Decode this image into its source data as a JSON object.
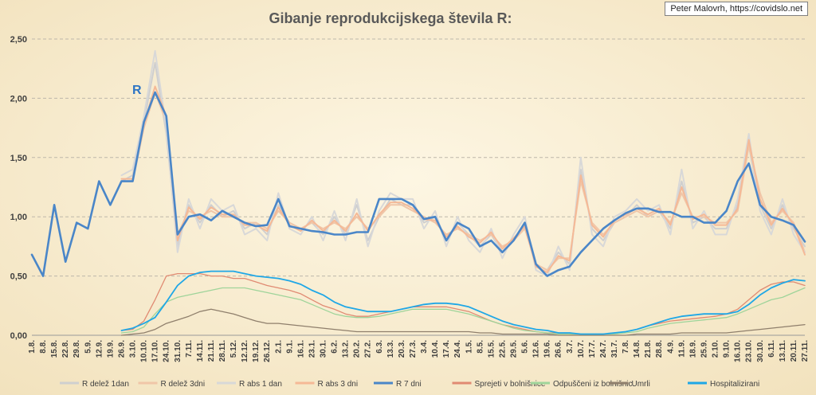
{
  "credit": "Peter Malovrh, https://covidslo.net",
  "chart_data": {
    "type": "line",
    "title": "Gibanje reprodukcijskega števila R:",
    "annotation": "R",
    "ylim": [
      0,
      2.5
    ],
    "yticks": [
      "0,00",
      "0,50",
      "1,00",
      "1,50",
      "2,00",
      "2,50"
    ],
    "grid": true,
    "legend_position": "bottom",
    "x": [
      "1.8.",
      "8.8.",
      "15.8.",
      "22.8.",
      "29.8.",
      "5.9.",
      "12.9.",
      "19.9.",
      "26.9.",
      "3.10.",
      "10.10.",
      "17.10.",
      "24.10.",
      "31.10.",
      "7.11.",
      "14.11.",
      "21.11.",
      "28.11.",
      "5.12.",
      "12.12.",
      "19.12.",
      "26.12.",
      "2.1.",
      "9.1.",
      "16.1.",
      "23.1.",
      "30.1.",
      "6.2.",
      "13.2.",
      "20.2.",
      "27.2.",
      "6.3.",
      "13.3.",
      "20.3.",
      "27.3.",
      "3.4.",
      "10.4.",
      "17.4.",
      "24.4.",
      "1.5.",
      "8.5.",
      "15.5.",
      "22.5.",
      "29.5.",
      "5.6.",
      "12.6.",
      "19.6.",
      "26.6.",
      "3.7.",
      "10.7.",
      "17.7.",
      "24.7.",
      "31.7.",
      "7.8.",
      "14.8.",
      "21.8.",
      "28.8.",
      "4.9.",
      "11.9.",
      "18.9.",
      "25.9.",
      "2.10.",
      "9.10.",
      "16.10.",
      "23.10.",
      "30.10.",
      "6.11.",
      "13.11.",
      "20.11.",
      "27.11."
    ],
    "series": [
      {
        "name": "R delež 1dan",
        "color": "#cfcfcf",
        "width": 2,
        "values": [
          null,
          null,
          null,
          null,
          null,
          null,
          null,
          null,
          1.3,
          1.35,
          1.8,
          2.3,
          1.7,
          0.75,
          1.1,
          0.95,
          1.1,
          1.0,
          1.05,
          0.9,
          0.95,
          0.85,
          1.1,
          0.95,
          0.9,
          0.95,
          0.85,
          1.0,
          0.85,
          1.1,
          0.8,
          1.0,
          1.15,
          1.1,
          1.1,
          0.95,
          1.0,
          0.8,
          0.95,
          0.85,
          0.75,
          0.85,
          0.7,
          0.8,
          0.95,
          0.6,
          0.55,
          0.7,
          0.6,
          1.4,
          0.9,
          0.8,
          0.95,
          1.0,
          1.1,
          1.0,
          1.05,
          0.9,
          1.3,
          0.95,
          1.0,
          0.9,
          0.9,
          1.1,
          1.6,
          1.1,
          0.9,
          1.1,
          0.9,
          0.75
        ]
      },
      {
        "name": "R delež 3dni",
        "color": "#f0c6a8",
        "width": 2,
        "values": [
          null,
          null,
          null,
          null,
          null,
          null,
          null,
          null,
          1.3,
          1.3,
          1.75,
          2.05,
          1.8,
          0.85,
          1.05,
          1.0,
          1.05,
          1.0,
          1.0,
          0.95,
          0.95,
          0.9,
          1.05,
          0.95,
          0.9,
          0.95,
          0.9,
          0.95,
          0.9,
          1.0,
          0.9,
          1.0,
          1.1,
          1.1,
          1.05,
          1.0,
          0.95,
          0.85,
          0.9,
          0.85,
          0.8,
          0.85,
          0.75,
          0.8,
          0.9,
          0.6,
          0.55,
          0.65,
          0.65,
          1.3,
          0.95,
          0.85,
          0.95,
          1.0,
          1.05,
          1.0,
          1.05,
          0.95,
          1.2,
          1.0,
          1.0,
          0.95,
          0.95,
          1.05,
          1.6,
          1.2,
          0.95,
          1.05,
          0.95,
          0.7
        ]
      },
      {
        "name": "R abs 1 dan",
        "color": "#d8d8d8",
        "width": 2,
        "values": [
          null,
          null,
          null,
          null,
          null,
          null,
          null,
          null,
          1.35,
          1.4,
          1.85,
          2.4,
          1.75,
          0.7,
          1.15,
          0.9,
          1.15,
          1.05,
          1.1,
          0.85,
          0.9,
          0.8,
          1.2,
          0.9,
          0.85,
          1.0,
          0.8,
          1.05,
          0.8,
          1.15,
          0.75,
          1.05,
          1.2,
          1.15,
          1.15,
          0.9,
          1.05,
          0.75,
          1.0,
          0.8,
          0.7,
          0.9,
          0.65,
          0.85,
          1.0,
          0.55,
          0.5,
          0.75,
          0.55,
          1.5,
          0.85,
          0.75,
          1.0,
          1.05,
          1.15,
          1.05,
          1.1,
          0.85,
          1.4,
          0.9,
          1.05,
          0.85,
          0.85,
          1.15,
          1.7,
          1.05,
          0.85,
          1.15,
          0.85,
          0.7
        ]
      },
      {
        "name": "R abs 3 dni",
        "color": "#f5b996",
        "width": 2,
        "values": [
          null,
          null,
          null,
          null,
          null,
          null,
          null,
          null,
          1.32,
          1.32,
          1.78,
          2.1,
          1.85,
          0.8,
          1.08,
          0.98,
          1.08,
          1.02,
          1.02,
          0.93,
          0.93,
          0.88,
          1.08,
          0.93,
          0.88,
          0.97,
          0.88,
          0.97,
          0.88,
          1.03,
          0.88,
          1.02,
          1.12,
          1.12,
          1.07,
          0.98,
          0.97,
          0.83,
          0.92,
          0.83,
          0.78,
          0.87,
          0.73,
          0.82,
          0.92,
          0.58,
          0.53,
          0.67,
          0.63,
          1.35,
          0.93,
          0.83,
          0.97,
          1.02,
          1.07,
          1.02,
          1.07,
          0.93,
          1.25,
          0.98,
          1.02,
          0.93,
          0.93,
          1.07,
          1.65,
          1.15,
          0.93,
          1.07,
          0.93,
          0.68
        ]
      },
      {
        "name": "R 7 dni",
        "color": "#4a86c8",
        "width": 2.6,
        "values": [
          0.68,
          0.5,
          1.1,
          0.62,
          0.95,
          0.9,
          1.3,
          1.1,
          1.3,
          1.3,
          1.8,
          2.05,
          1.85,
          0.85,
          1.0,
          1.02,
          0.97,
          1.05,
          1.0,
          0.95,
          0.92,
          0.93,
          1.15,
          0.92,
          0.9,
          0.88,
          0.87,
          0.85,
          0.85,
          0.87,
          0.87,
          1.15,
          1.15,
          1.15,
          1.1,
          0.98,
          1.0,
          0.8,
          0.95,
          0.9,
          0.75,
          0.8,
          0.7,
          0.8,
          0.95,
          0.6,
          0.5,
          0.55,
          0.58,
          0.7,
          0.8,
          0.9,
          0.97,
          1.03,
          1.07,
          1.07,
          1.04,
          1.04,
          1.0,
          1.0,
          0.95,
          0.95,
          1.05,
          1.3,
          1.45,
          1.1,
          1.0,
          0.97,
          0.93,
          0.79
        ]
      },
      {
        "name": "Sprejeti v bolnišnice",
        "color": "#e08a72",
        "width": 1.3,
        "values": [
          null,
          null,
          null,
          null,
          null,
          null,
          null,
          null,
          0.04,
          0.05,
          0.12,
          0.3,
          0.5,
          0.52,
          0.52,
          0.52,
          0.5,
          0.5,
          0.48,
          0.48,
          0.45,
          0.42,
          0.4,
          0.38,
          0.35,
          0.3,
          0.25,
          0.22,
          0.18,
          0.16,
          0.16,
          0.18,
          0.2,
          0.22,
          0.24,
          0.24,
          0.24,
          0.24,
          0.22,
          0.2,
          0.16,
          0.12,
          0.09,
          0.07,
          0.05,
          0.03,
          0.02,
          0.02,
          0.01,
          0.01,
          0.01,
          0.01,
          0.02,
          0.03,
          0.05,
          0.08,
          0.1,
          0.12,
          0.13,
          0.14,
          0.15,
          0.16,
          0.18,
          0.22,
          0.3,
          0.38,
          0.43,
          0.45,
          0.45,
          0.42
        ]
      },
      {
        "name": "Odpuščeni iz bolnišnic",
        "color": "#9fd49a",
        "width": 1.3,
        "values": [
          null,
          null,
          null,
          null,
          null,
          null,
          null,
          null,
          0.02,
          0.03,
          0.07,
          0.18,
          0.28,
          0.32,
          0.34,
          0.36,
          0.38,
          0.4,
          0.4,
          0.4,
          0.38,
          0.36,
          0.34,
          0.32,
          0.3,
          0.26,
          0.22,
          0.18,
          0.16,
          0.15,
          0.15,
          0.16,
          0.18,
          0.2,
          0.22,
          0.22,
          0.22,
          0.22,
          0.2,
          0.18,
          0.15,
          0.12,
          0.09,
          0.06,
          0.04,
          0.03,
          0.02,
          0.01,
          0.01,
          0.01,
          0.01,
          0.01,
          0.01,
          0.02,
          0.03,
          0.06,
          0.08,
          0.1,
          0.11,
          0.12,
          0.13,
          0.14,
          0.15,
          0.18,
          0.22,
          0.26,
          0.3,
          0.32,
          0.36,
          0.4
        ]
      },
      {
        "name": "Umrli",
        "color": "#8f7f6c",
        "width": 1.3,
        "values": [
          null,
          null,
          null,
          null,
          null,
          null,
          null,
          null,
          0.0,
          0.01,
          0.02,
          0.05,
          0.1,
          0.13,
          0.16,
          0.2,
          0.22,
          0.2,
          0.18,
          0.15,
          0.12,
          0.1,
          0.1,
          0.09,
          0.08,
          0.07,
          0.06,
          0.05,
          0.04,
          0.03,
          0.03,
          0.03,
          0.03,
          0.03,
          0.03,
          0.03,
          0.03,
          0.03,
          0.03,
          0.03,
          0.02,
          0.02,
          0.01,
          0.01,
          0.01,
          0.01,
          0.01,
          0.0,
          0.0,
          0.0,
          0.0,
          0.0,
          0.0,
          0.0,
          0.01,
          0.01,
          0.01,
          0.01,
          0.02,
          0.02,
          0.02,
          0.02,
          0.02,
          0.03,
          0.04,
          0.05,
          0.06,
          0.07,
          0.08,
          0.09
        ]
      },
      {
        "name": "Hospitalizirani",
        "color": "#1fa7e6",
        "width": 1.8,
        "values": [
          null,
          null,
          null,
          null,
          null,
          null,
          null,
          null,
          0.04,
          0.06,
          0.1,
          0.15,
          0.28,
          0.42,
          0.5,
          0.53,
          0.54,
          0.54,
          0.54,
          0.52,
          0.5,
          0.49,
          0.48,
          0.46,
          0.43,
          0.38,
          0.34,
          0.28,
          0.24,
          0.22,
          0.2,
          0.2,
          0.2,
          0.22,
          0.24,
          0.26,
          0.27,
          0.27,
          0.26,
          0.24,
          0.2,
          0.16,
          0.12,
          0.09,
          0.07,
          0.05,
          0.04,
          0.02,
          0.02,
          0.01,
          0.01,
          0.01,
          0.02,
          0.03,
          0.05,
          0.08,
          0.11,
          0.14,
          0.16,
          0.17,
          0.18,
          0.18,
          0.18,
          0.2,
          0.26,
          0.34,
          0.4,
          0.44,
          0.47,
          0.46
        ]
      }
    ]
  }
}
